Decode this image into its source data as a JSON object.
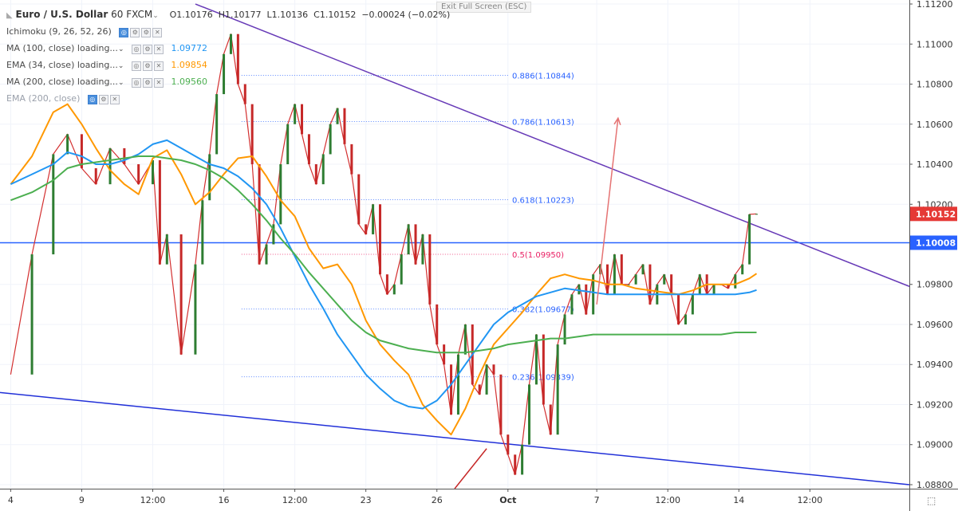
{
  "header": {
    "symbol": "Euro / U.S. Dollar",
    "interval": "60",
    "source": "FXCM",
    "open": "O1.10176",
    "high": "H1.10177",
    "low": "L1.10136",
    "close": "C1.10152",
    "change": "−0.00024 (−0.02%)",
    "exit_fullscreen": "Exit Full Screen (ESC)"
  },
  "indicators": [
    {
      "label": "Ichimoku (9, 26, 52, 26)",
      "value": "",
      "color": "#8a8f9c"
    },
    {
      "label": "MA (100, close) loading...",
      "value": "1.09772",
      "color": "#2196f3"
    },
    {
      "label": "EMA (34, close) loading...",
      "value": "1.09854",
      "color": "#ff9800"
    },
    {
      "label": "MA (200, close) loading...",
      "value": "1.09560",
      "color": "#4caf50"
    },
    {
      "label": "EMA (200, close)",
      "value": "",
      "color": "#8a8f9c"
    }
  ],
  "chart_data": {
    "type": "line",
    "title": "Euro / U.S. Dollar 60 FXCM",
    "xlabel": "",
    "ylabel": "",
    "ylim": [
      1.0878,
      1.1122
    ],
    "y_ticks": [
      "1.11200",
      "1.11000",
      "1.10800",
      "1.10600",
      "1.10400",
      "1.10200",
      "1.09800",
      "1.09600",
      "1.09400",
      "1.09200",
      "1.09000",
      "1.08800"
    ],
    "x_ticks": [
      "4",
      "9",
      "12:00",
      "16",
      "12:00",
      "23",
      "26",
      "Oct",
      "7",
      "12:00",
      "14",
      "12:00"
    ],
    "x_tick_bars": [
      0,
      20,
      40,
      60,
      80,
      100,
      120,
      140,
      165,
      185,
      205,
      225
    ],
    "x_range_bars": [
      -3,
      253
    ],
    "price_labels": [
      {
        "text": "1.10152",
        "value": 1.10152,
        "color": "#e53935"
      },
      {
        "text": "1.10008",
        "value": 1.10008,
        "color": "#2962ff"
      }
    ],
    "grid": true,
    "series": [
      {
        "name": "Close",
        "color": "#d32f2f",
        "x": [
          0,
          6,
          12,
          16,
          20,
          24,
          28,
          32,
          36,
          40,
          42,
          44,
          48,
          52,
          54,
          56,
          58,
          60,
          62,
          64,
          66,
          68,
          70,
          72,
          74,
          76,
          78,
          80,
          82,
          84,
          86,
          88,
          90,
          92,
          94,
          96,
          98,
          100,
          102,
          104,
          106,
          108,
          110,
          112,
          114,
          116,
          118,
          120,
          122,
          124,
          126,
          128,
          130,
          132,
          134,
          136,
          138,
          140,
          142,
          144,
          146,
          148,
          150,
          152,
          154,
          156,
          158,
          160,
          162,
          164,
          166,
          168,
          170,
          172,
          174,
          176,
          178,
          180,
          182,
          184,
          186,
          188,
          190,
          192,
          194,
          196,
          198,
          200,
          202,
          204,
          206,
          208,
          210
        ],
        "values": [
          1.0935,
          1.0995,
          1.1045,
          1.1055,
          1.1038,
          1.103,
          1.1048,
          1.104,
          1.103,
          1.1042,
          1.099,
          1.1005,
          1.0945,
          1.099,
          1.1022,
          1.1045,
          1.1075,
          1.1095,
          1.1105,
          1.108,
          1.107,
          1.104,
          1.099,
          1.1,
          1.101,
          1.104,
          1.106,
          1.107,
          1.1055,
          1.104,
          1.103,
          1.1045,
          1.106,
          1.1068,
          1.105,
          1.1035,
          1.101,
          1.1005,
          1.102,
          1.0985,
          1.0975,
          1.098,
          1.0995,
          1.101,
          1.099,
          1.1005,
          1.097,
          1.095,
          1.094,
          1.0915,
          1.0945,
          1.096,
          1.093,
          1.0925,
          1.094,
          1.0935,
          1.0905,
          1.0895,
          1.0885,
          1.09,
          1.093,
          1.0955,
          1.092,
          1.0905,
          1.095,
          1.0965,
          1.0975,
          1.098,
          1.0965,
          1.0985,
          1.099,
          1.0975,
          1.0995,
          1.098,
          1.098,
          1.0985,
          1.099,
          1.097,
          1.098,
          1.0985,
          1.0975,
          1.096,
          1.0965,
          1.0975,
          1.0985,
          1.0975,
          1.098,
          1.098,
          1.0978,
          1.0985,
          1.099,
          1.1015,
          1.10152
        ]
      },
      {
        "name": "EMA 34",
        "color": "#ff9800",
        "x": [
          0,
          6,
          12,
          16,
          20,
          24,
          28,
          32,
          36,
          40,
          44,
          48,
          52,
          56,
          60,
          64,
          68,
          72,
          76,
          80,
          84,
          88,
          92,
          96,
          100,
          104,
          108,
          112,
          116,
          120,
          124,
          128,
          132,
          136,
          140,
          144,
          148,
          152,
          156,
          160,
          164,
          168,
          172,
          176,
          180,
          184,
          188,
          192,
          196,
          200,
          204,
          208,
          210
        ],
        "values": [
          1.103,
          1.1044,
          1.1066,
          1.107,
          1.106,
          1.1048,
          1.1037,
          1.103,
          1.1025,
          1.1043,
          1.1047,
          1.1035,
          1.102,
          1.1026,
          1.1035,
          1.1043,
          1.1044,
          1.1034,
          1.1022,
          1.1014,
          1.0998,
          1.0988,
          1.099,
          1.098,
          1.0962,
          1.095,
          1.0942,
          1.0935,
          1.092,
          1.0912,
          1.0905,
          1.0918,
          1.0935,
          1.095,
          1.0958,
          1.0966,
          1.0975,
          1.0983,
          1.0985,
          1.0983,
          1.0982,
          1.098,
          1.098,
          1.0978,
          1.0977,
          1.0976,
          1.0975,
          1.0977,
          1.098,
          1.098,
          1.098,
          1.0983,
          1.09854
        ]
      },
      {
        "name": "MA 100",
        "color": "#2196f3",
        "x": [
          0,
          6,
          12,
          16,
          20,
          24,
          28,
          32,
          36,
          40,
          44,
          48,
          52,
          56,
          60,
          64,
          68,
          72,
          76,
          80,
          84,
          88,
          92,
          96,
          100,
          104,
          108,
          112,
          116,
          120,
          124,
          128,
          132,
          136,
          140,
          144,
          148,
          152,
          156,
          160,
          164,
          168,
          172,
          176,
          180,
          184,
          188,
          192,
          196,
          200,
          204,
          208,
          210
        ],
        "values": [
          1.103,
          1.1035,
          1.104,
          1.1046,
          1.1044,
          1.104,
          1.104,
          1.1042,
          1.1045,
          1.105,
          1.1052,
          1.1048,
          1.1044,
          1.104,
          1.1038,
          1.1034,
          1.1028,
          1.102,
          1.1008,
          1.0994,
          1.098,
          1.0968,
          1.0955,
          1.0945,
          1.0935,
          1.0928,
          1.0922,
          1.0919,
          1.0918,
          1.0922,
          1.093,
          1.094,
          1.095,
          1.096,
          1.0966,
          1.097,
          1.0974,
          1.0976,
          1.0978,
          1.0977,
          1.0976,
          1.0975,
          1.0975,
          1.0975,
          1.0975,
          1.0975,
          1.0975,
          1.0975,
          1.0975,
          1.0975,
          1.0975,
          1.0976,
          1.09772
        ]
      },
      {
        "name": "MA 200",
        "color": "#4caf50",
        "x": [
          0,
          6,
          12,
          16,
          20,
          24,
          28,
          32,
          36,
          40,
          44,
          48,
          52,
          56,
          60,
          64,
          68,
          72,
          76,
          80,
          84,
          88,
          92,
          96,
          100,
          104,
          108,
          112,
          116,
          120,
          124,
          128,
          132,
          136,
          140,
          144,
          148,
          152,
          156,
          160,
          164,
          168,
          172,
          176,
          180,
          184,
          188,
          192,
          196,
          200,
          204,
          208,
          210
        ],
        "values": [
          1.1022,
          1.1026,
          1.1032,
          1.1038,
          1.104,
          1.1041,
          1.1042,
          1.1043,
          1.1044,
          1.1044,
          1.1043,
          1.1042,
          1.104,
          1.1037,
          1.1033,
          1.1027,
          1.102,
          1.1012,
          1.1003,
          1.0995,
          1.0986,
          1.0978,
          1.097,
          1.0962,
          1.0956,
          1.0952,
          1.095,
          1.0948,
          1.0947,
          1.0946,
          1.0946,
          1.0946,
          1.0947,
          1.0948,
          1.095,
          1.0951,
          1.0952,
          1.0953,
          1.0953,
          1.0954,
          1.0955,
          1.0955,
          1.0955,
          1.0955,
          1.0955,
          1.0955,
          1.0955,
          1.0955,
          1.0955,
          1.0955,
          1.0956,
          1.0956,
          1.0956
        ]
      }
    ],
    "annotations": {
      "fib_levels": [
        {
          "label": "0.886(1.10844)",
          "value": 1.10844,
          "color": "#2962ff"
        },
        {
          "label": "0.786(1.10613)",
          "value": 1.10613,
          "color": "#2962ff"
        },
        {
          "label": "0.618(1.10223)",
          "value": 1.10223,
          "color": "#2962ff"
        },
        {
          "label": "0.5(1.09950)",
          "value": 1.0995,
          "color": "#e91e63"
        },
        {
          "label": "0.382(1.09677)",
          "value": 1.09677,
          "color": "#2962ff"
        },
        {
          "label": "0.236(1.09339)",
          "value": 1.09339,
          "color": "#2962ff"
        }
      ],
      "trend_lines": [
        {
          "name": "upper-trendline",
          "color": "#673ab7",
          "from": [
            52,
            1.112
          ],
          "to": [
            253,
            1.0979
          ]
        },
        {
          "name": "lower-trendline",
          "color": "#2130d8",
          "from": [
            -3,
            1.0926
          ],
          "to": [
            253,
            1.088
          ]
        },
        {
          "name": "horizontal-level",
          "color": "#2962ff",
          "from": [
            -3,
            1.10008
          ],
          "to": [
            253,
            1.10008
          ]
        }
      ],
      "arrows": [
        {
          "name": "target-arrow",
          "color": "#e57373",
          "from": [
            165,
            1.097
          ],
          "to": [
            171,
            1.1063
          ]
        },
        {
          "name": "support-arrow",
          "color": "#c62828",
          "from": [
            125,
            1.0878
          ],
          "to": [
            134,
            1.0898
          ]
        }
      ]
    }
  }
}
